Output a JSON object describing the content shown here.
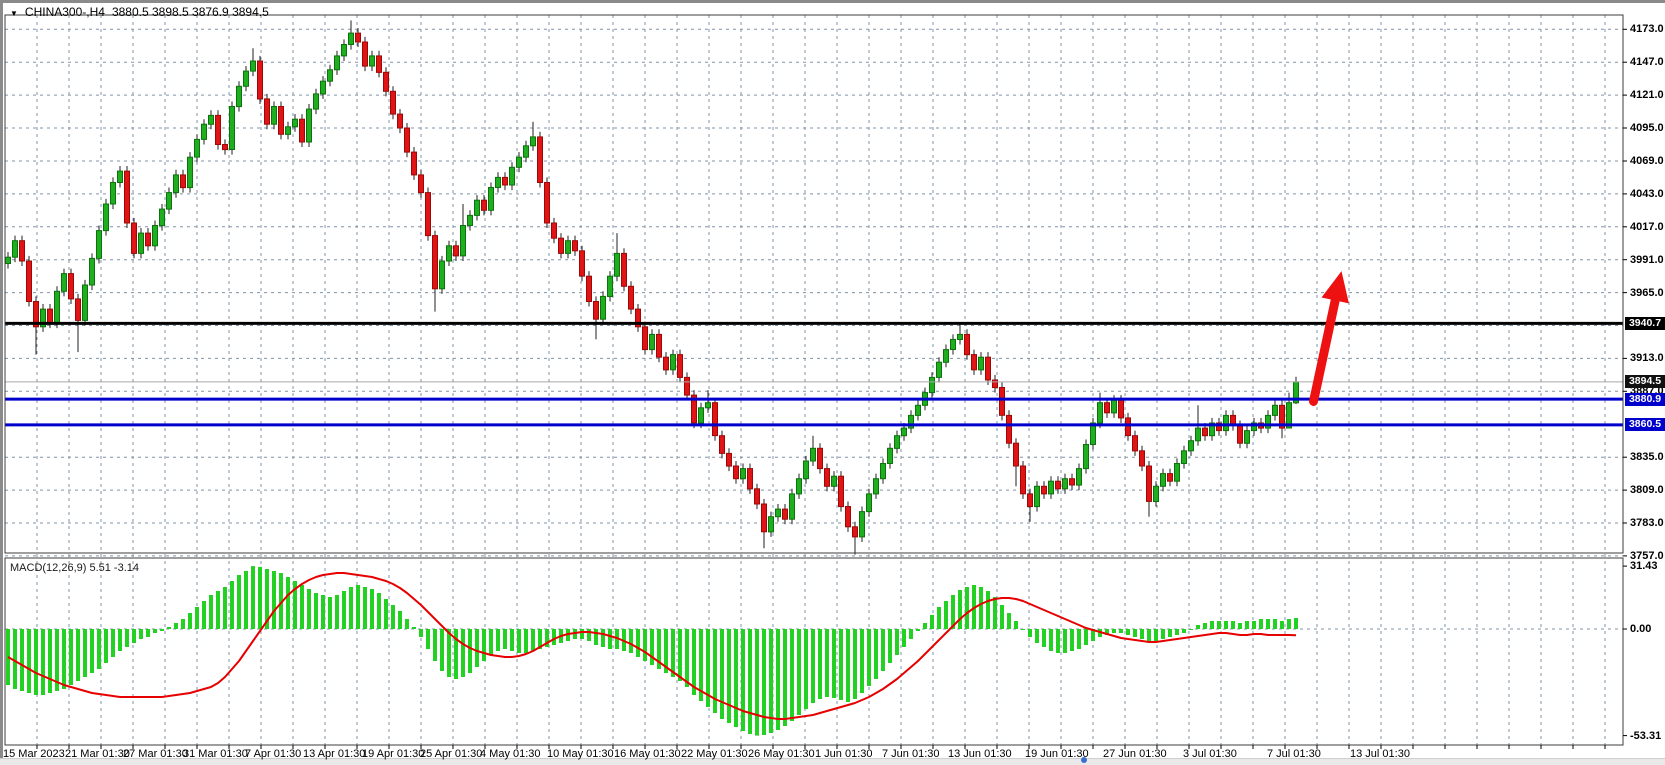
{
  "header": {
    "dropdown_glyph": "▼",
    "symbol": "CHINA300-,H4",
    "ohlc": "3880.5 3898.5 3876.9 3894.5"
  },
  "indicator": {
    "label": "MACD(12,26,9) 5.51 -3.14"
  },
  "colors": {
    "bull": "#1fae1f",
    "bull_border": "#0c720c",
    "bear": "#e01414",
    "bear_border": "#9c0808",
    "wick": "#222222",
    "grid": "#8194a8",
    "macd_bar": "#22d122",
    "macd_signal": "#e60000",
    "arrow": "#ee1111",
    "level_blue": "#0000cd",
    "level_black": "#000000",
    "price_line": "#a9a9a9",
    "border": "#3c3c3c"
  },
  "axes": {
    "price_ticks_visible": [
      4173.0,
      4147.0,
      4121.0,
      4095.0,
      4069.0,
      4043.0,
      4017.0,
      3991.0,
      3965.0,
      3913.0,
      3887.0,
      3835.0,
      3809.0,
      3783.0,
      3757.0
    ],
    "price_grid": [
      4173,
      4147,
      4121,
      4095,
      4069,
      4043,
      4017,
      3991,
      3965,
      3939,
      3913,
      3887,
      3861,
      3835,
      3809,
      3783,
      3757
    ],
    "macd_ticks": [
      {
        "label": "31.43",
        "value": 31.43
      },
      {
        "label": "0.00",
        "value": 0
      },
      {
        "label": "-53.31",
        "value": -53.31
      }
    ],
    "date_labels": [
      [
        "15 Mar 2023",
        3
      ],
      [
        "21 Mar 01:30",
        65
      ],
      [
        "27 Mar 01:30",
        123
      ],
      [
        "31 Mar 01:30",
        183
      ],
      [
        "7 Apr 01:30",
        245
      ],
      [
        "13 Apr 01:30",
        303
      ],
      [
        "19 Apr 01:30",
        362
      ],
      [
        "25 Apr 01:30",
        420
      ],
      [
        "4 May 01:30",
        480
      ],
      [
        "10 May 01:30",
        547
      ],
      [
        "16 May 01:30",
        614
      ],
      [
        "22 May 01:30",
        681
      ],
      [
        "26 May 01:30",
        748
      ],
      [
        "1 Jun 01:30",
        815
      ],
      [
        "7 Jun 01:30",
        882
      ],
      [
        "13 Jun 01:30",
        948
      ],
      [
        "19 Jun 01:30",
        1025
      ],
      [
        "27 Jun 01:30",
        1103
      ],
      [
        "3 Jul 01:30",
        1183
      ],
      [
        "7 Jul 01:30",
        1267
      ],
      [
        "13 Jul 01:30",
        1350
      ]
    ]
  },
  "levels": [
    {
      "name": "resistance-line",
      "label": "3940.7",
      "value": 3940.7,
      "line_color": "#000000",
      "badge_bg": "#000000",
      "line_width": 3
    },
    {
      "name": "current-price-line",
      "label": "3894.5",
      "value": 3894.5,
      "line_color": "#a9a9a9",
      "badge_bg": "#111111",
      "line_width": 1
    },
    {
      "name": "support-line-1",
      "label": "3880.9",
      "value": 3880.9,
      "line_color": "#0000cd",
      "badge_bg": "#0000cd",
      "line_width": 3
    },
    {
      "name": "support-line-2",
      "label": "3860.5",
      "value": 3860.5,
      "line_color": "#0000cd",
      "badge_bg": "#0000cd",
      "line_width": 3
    }
  ],
  "annotations": {
    "up_arrow": {
      "color": "#ee1111",
      "from": {
        "bar": 186.5,
        "price": 3879
      },
      "to": {
        "bar": 190.5,
        "price": 3982
      }
    }
  },
  "chart_data": {
    "type": "candlestick-with-macd",
    "title": "CHINA300-,H4",
    "timeframe": "H4",
    "date_range": [
      "15 Mar 2023",
      "13 Jul 2023"
    ],
    "price_axis_range": [
      3757.0,
      4173.0
    ],
    "macd_axis_range": [
      -53.31,
      31.43
    ],
    "grid": true,
    "last_quote": {
      "open": 3880.5,
      "high": 3898.5,
      "low": 3876.9,
      "close": 3894.5
    },
    "candles": {
      "first_open": 3988,
      "default_wick": 4,
      "closes": [
        3993,
        4006,
        3990,
        3958,
        3938,
        3952,
        3941,
        3966,
        3980,
        3960,
        3943,
        3971,
        3992,
        4014,
        4035,
        4052,
        4061,
        4020,
        3996,
        4012,
        4002,
        4018,
        4031,
        4044,
        4058,
        4048,
        4072,
        4086,
        4098,
        4105,
        4082,
        4078,
        4112,
        4128,
        4140,
        4148,
        4118,
        4098,
        4112,
        4090,
        4096,
        4102,
        4084,
        4110,
        4122,
        4132,
        4141,
        4152,
        4161,
        4170,
        4163,
        4144,
        4152,
        4139,
        4124,
        4106,
        4095,
        4076,
        4058,
        4044,
        4010,
        3968,
        3990,
        4002,
        3994,
        4018,
        4026,
        4038,
        4030,
        4048,
        4056,
        4050,
        4064,
        4072,
        4081,
        4088,
        4052,
        4020,
        4008,
        3996,
        4006,
        3998,
        3978,
        3958,
        3944,
        3962,
        3978,
        3996,
        3970,
        3952,
        3938,
        3920,
        3932,
        3914,
        3904,
        3916,
        3898,
        3884,
        3862,
        3874,
        3878,
        3852,
        3838,
        3828,
        3818,
        3826,
        3810,
        3798,
        3776,
        3788,
        3794,
        3786,
        3806,
        3818,
        3832,
        3842,
        3826,
        3812,
        3820,
        3796,
        3780,
        3772,
        3792,
        3806,
        3818,
        3830,
        3842,
        3852,
        3858,
        3868,
        3876,
        3886,
        3898,
        3910,
        3920,
        3928,
        3932,
        3916,
        3904,
        3914,
        3896,
        3890,
        3868,
        3846,
        3828,
        3806,
        3796,
        3812,
        3806,
        3816,
        3810,
        3818,
        3813,
        3826,
        3845,
        3862,
        3878,
        3870,
        3880,
        3866,
        3852,
        3840,
        3828,
        3800,
        3812,
        3822,
        3816,
        3830,
        3840,
        3848,
        3858,
        3852,
        3862,
        3856,
        3868,
        3860,
        3846,
        3856,
        3862,
        3858,
        3868,
        3876,
        3858,
        3878,
        3894.5
      ],
      "extra_wicks": {
        "4": [
          3916,
          null
        ],
        "10": [
          3918,
          null
        ],
        "35": [
          null,
          4158
        ],
        "49": [
          null,
          4180
        ],
        "61": [
          3950,
          null
        ],
        "65": [
          null,
          4035
        ],
        "75": [
          null,
          4100
        ],
        "84": [
          3928,
          null
        ],
        "87": [
          null,
          4012
        ],
        "100": [
          null,
          3888
        ],
        "108": [
          3763,
          null
        ],
        "115": [
          null,
          3852
        ],
        "121": [
          3758,
          null
        ],
        "136": [
          null,
          3940
        ],
        "144": [
          3812,
          null
        ],
        "146": [
          3784,
          null
        ],
        "156": [
          null,
          3886
        ],
        "163": [
          3788,
          null
        ],
        "170": [
          null,
          3876
        ],
        "182": [
          3850,
          null
        ],
        "183": [
          3864,
          3886
        ],
        "184": [
          3876.9,
          3898.5
        ]
      }
    },
    "macd": {
      "histogram": [
        -28,
        -30,
        -31,
        -32,
        -33,
        -33,
        -32,
        -31,
        -30,
        -28,
        -26,
        -24,
        -22,
        -20,
        -17,
        -14,
        -11,
        -9,
        -7,
        -5,
        -4,
        -2,
        -1,
        1,
        3,
        5,
        8,
        11,
        14,
        17,
        19,
        21,
        24,
        27,
        29,
        31.43,
        31,
        30,
        29,
        28,
        26,
        24,
        22,
        20,
        18,
        17,
        16,
        17,
        19,
        21,
        22,
        21,
        20,
        18,
        15,
        12,
        9,
        5,
        1,
        -4,
        -10,
        -16,
        -21,
        -24,
        -25,
        -24,
        -22,
        -19,
        -16,
        -13,
        -11,
        -10,
        -11,
        -12,
        -12,
        -11,
        -10,
        -9,
        -8,
        -7,
        -6,
        -5,
        -5,
        -6,
        -8,
        -9,
        -10,
        -10,
        -11,
        -12,
        -14,
        -16,
        -18,
        -20,
        -22,
        -24,
        -26,
        -29,
        -33,
        -36,
        -39,
        -42,
        -45,
        -47,
        -49,
        -51,
        -52.5,
        -53.31,
        -53,
        -52,
        -50.5,
        -48.5,
        -46,
        -43,
        -40,
        -37,
        -35,
        -34,
        -34.5,
        -35.5,
        -36.5,
        -35,
        -32,
        -28.5,
        -25,
        -21,
        -17,
        -13,
        -9,
        -5,
        -1,
        3,
        7,
        11,
        14,
        17,
        19.5,
        21,
        22,
        21,
        19,
        16,
        12,
        8,
        4,
        0,
        -4,
        -7,
        -9,
        -11,
        -12,
        -12,
        -11,
        -10,
        -8,
        -6,
        -4,
        -3,
        -2,
        -2,
        -3,
        -4,
        -5,
        -6,
        -6,
        -5,
        -4,
        -3,
        -2,
        0,
        2,
        3,
        4,
        4,
        4,
        4,
        3,
        4,
        4,
        5,
        5,
        5,
        4,
        5,
        5.51
      ],
      "signal": [
        -14,
        -16,
        -18,
        -20,
        -22,
        -23.5,
        -25,
        -26.5,
        -28,
        -29,
        -30,
        -31,
        -32,
        -32.5,
        -33,
        -33.5,
        -34,
        -34,
        -34,
        -34,
        -34,
        -34,
        -34,
        -33.5,
        -33,
        -32.5,
        -32,
        -31,
        -30,
        -29,
        -27,
        -24,
        -20,
        -16,
        -11,
        -6,
        -1,
        4,
        9,
        13,
        17,
        20,
        22.5,
        24.5,
        26,
        27,
        27.5,
        28,
        28,
        27.5,
        27,
        26.5,
        26,
        25,
        24,
        22.5,
        20.5,
        18,
        15,
        12,
        8.5,
        5,
        1.5,
        -2,
        -5,
        -7.5,
        -9.5,
        -11,
        -12,
        -13,
        -13.5,
        -14,
        -14,
        -13.5,
        -12.5,
        -11,
        -9,
        -7,
        -5,
        -3.5,
        -2.5,
        -2,
        -1.5,
        -1.5,
        -2,
        -2.5,
        -3.5,
        -4.5,
        -6,
        -7.5,
        -9.5,
        -11.5,
        -14,
        -16.5,
        -19,
        -21.5,
        -24,
        -26.5,
        -29,
        -31,
        -33,
        -35,
        -36.5,
        -38,
        -39.5,
        -41,
        -42,
        -43,
        -44,
        -44.5,
        -45,
        -45,
        -44.5,
        -44,
        -43.5,
        -43,
        -42,
        -41,
        -40,
        -39,
        -38,
        -37,
        -35.5,
        -34,
        -32,
        -30,
        -27.5,
        -25,
        -22,
        -19,
        -16,
        -12.5,
        -9,
        -5.5,
        -2,
        1.5,
        5,
        8,
        10.5,
        12.5,
        14,
        15,
        15.5,
        15.5,
        15,
        14,
        12.5,
        11,
        9.5,
        8,
        6.5,
        5,
        3.5,
        2,
        0.5,
        -0.5,
        -1.5,
        -2.5,
        -3.5,
        -4.5,
        -5,
        -5.5,
        -6,
        -6.5,
        -6.5,
        -6,
        -5.5,
        -5,
        -4.5,
        -4,
        -3.5,
        -3,
        -2.5,
        -2,
        -2,
        -2.5,
        -3,
        -3,
        -2.5,
        -2.5,
        -3,
        -3,
        -3,
        -3,
        -3.14
      ]
    }
  }
}
